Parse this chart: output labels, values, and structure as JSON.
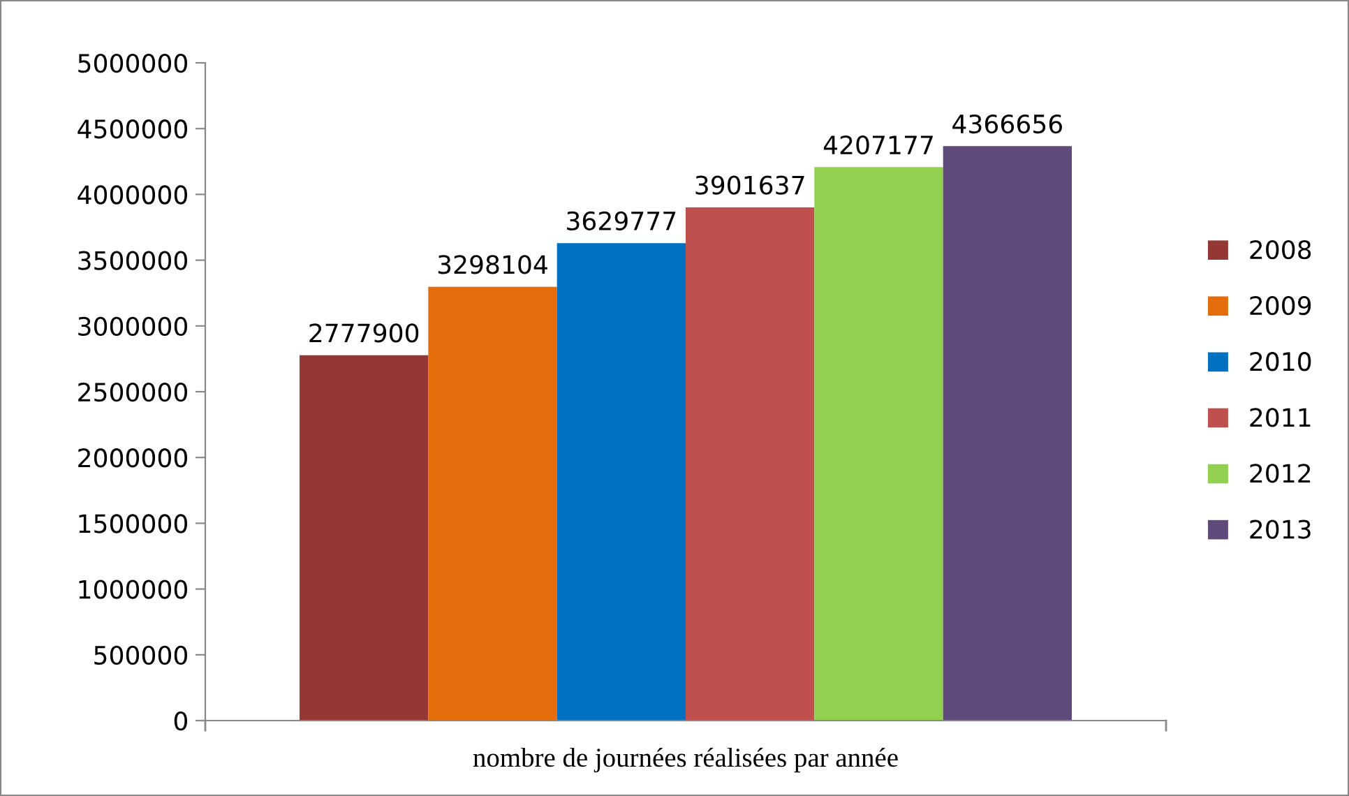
{
  "chart_data": {
    "type": "bar",
    "categories": [
      "nombre de journées réalisées par année"
    ],
    "series": [
      {
        "name": "2008",
        "color": "#953735",
        "values": [
          2777900
        ]
      },
      {
        "name": "2009",
        "color": "#e46c0a",
        "values": [
          3298104
        ]
      },
      {
        "name": "2010",
        "color": "#0070c0",
        "values": [
          3629777
        ]
      },
      {
        "name": "2011",
        "color": "#c0504d",
        "values": [
          3901637
        ]
      },
      {
        "name": "2012",
        "color": "#92d050",
        "values": [
          4207177
        ]
      },
      {
        "name": "2013",
        "color": "#604a7b",
        "values": [
          4366656
        ]
      }
    ],
    "ylim": [
      0,
      5000000
    ],
    "yticks": [
      0,
      500000,
      1000000,
      1500000,
      2000000,
      2500000,
      3000000,
      3500000,
      4000000,
      4500000,
      5000000
    ],
    "data_labels": true,
    "legend": "right",
    "grid": false
  }
}
